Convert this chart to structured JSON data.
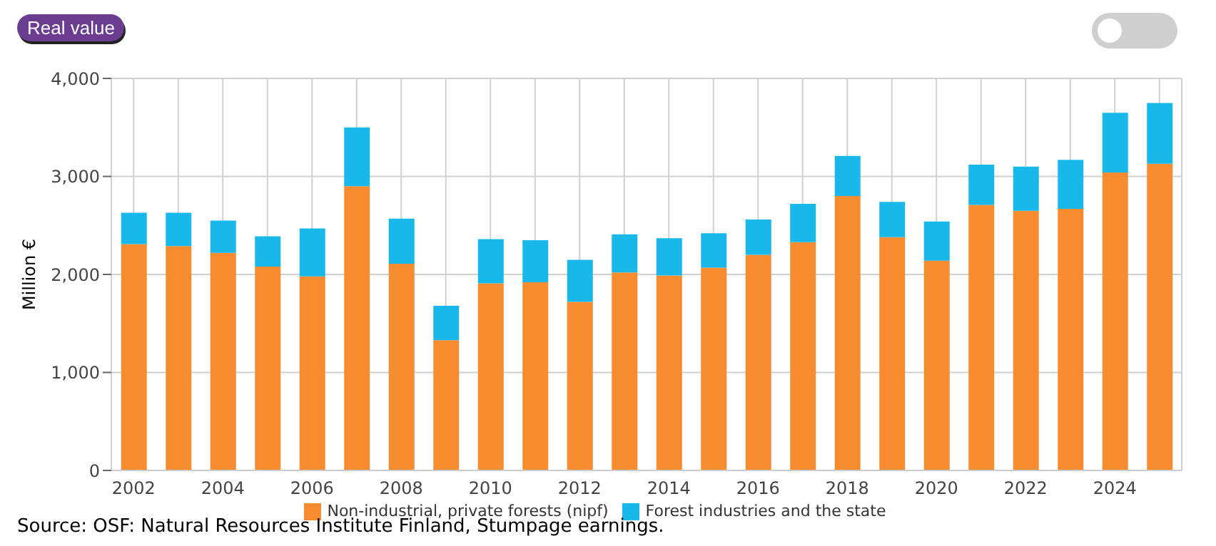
{
  "chart_data": {
    "type": "bar",
    "stacked": true,
    "ylabel": "Million €",
    "categories": [
      "2002",
      null,
      "2004",
      null,
      "2006",
      null,
      "2008",
      null,
      "2010",
      null,
      "2012",
      null,
      "2014",
      null,
      "2016",
      null,
      "2018",
      null,
      "2020",
      null,
      "2022",
      null,
      "2024",
      null
    ],
    "series": [
      {
        "name": "Non-industrial, private forests (nipf)",
        "color": "#f68b2f",
        "values": [
          2310,
          2290,
          2220,
          2080,
          1980,
          2900,
          2110,
          1330,
          1910,
          1920,
          1720,
          2020,
          1990,
          2070,
          2200,
          2330,
          2800,
          2380,
          2140,
          2710,
          2650,
          2670,
          3040,
          3130
        ]
      },
      {
        "name": "Forest industries and the state",
        "color": "#18b8ea",
        "values": [
          320,
          340,
          330,
          310,
          490,
          600,
          460,
          350,
          450,
          430,
          430,
          390,
          380,
          350,
          360,
          390,
          410,
          360,
          400,
          410,
          450,
          500,
          610,
          620
        ]
      }
    ],
    "ylim": [
      0,
      4000
    ],
    "yticks": [
      {
        "value": 0,
        "label": "0"
      },
      {
        "value": 1000,
        "label": "1,000"
      },
      {
        "value": 2000,
        "label": "2,000"
      },
      {
        "value": 3000,
        "label": "3,000"
      },
      {
        "value": 4000,
        "label": "4,000"
      }
    ],
    "grid": true,
    "legend": "bottom",
    "annotations": [
      "Real value",
      "Source: OSF: Natural Resources Institute Finland, Stumpage earnings."
    ]
  }
}
